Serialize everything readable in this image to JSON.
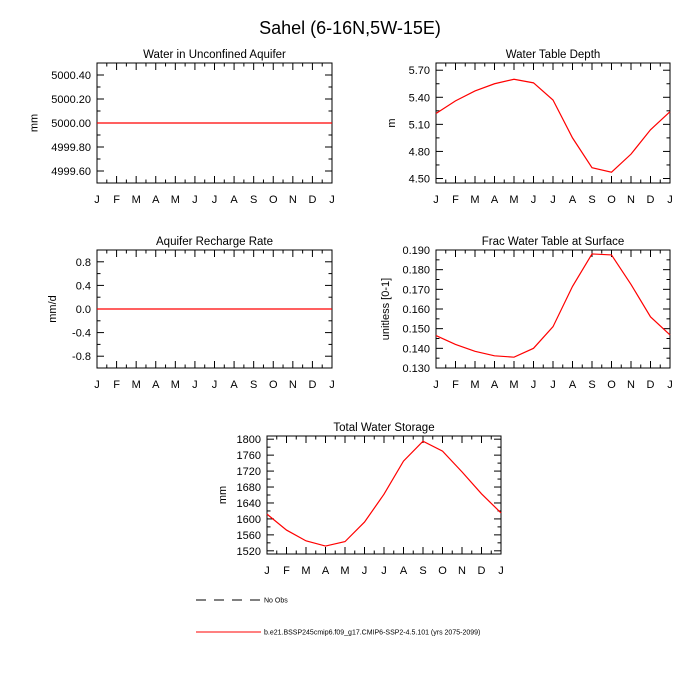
{
  "figure_title": "Sahel (6-16N,5W-15E)",
  "chart_data": [
    {
      "type": "line",
      "title": "Water in Unconfined Aquifer",
      "ylabel": "mm",
      "xlabel": "",
      "categories": [
        "J",
        "F",
        "M",
        "A",
        "M",
        "J",
        "J",
        "A",
        "S",
        "O",
        "N",
        "D",
        "J"
      ],
      "ylim": [
        4999.5,
        5000.5
      ],
      "yticks": [
        "5000.40",
        "5000.20",
        "5000.00",
        "4999.80",
        "4999.60"
      ],
      "ytick_values": [
        5000.4,
        5000.2,
        5000.0,
        4999.8,
        4999.6
      ],
      "series": [
        {
          "name": "b.e21.BSSP245cmip6.f09_g17.CMIP6-SSP2-4.5.101 (yrs 2075-2099)",
          "color": "#ff0000",
          "values": [
            5000,
            5000,
            5000,
            5000,
            5000,
            5000,
            5000,
            5000,
            5000,
            5000,
            5000,
            5000,
            5000
          ]
        }
      ]
    },
    {
      "type": "line",
      "title": "Water Table Depth",
      "ylabel": "m",
      "xlabel": "",
      "categories": [
        "J",
        "F",
        "M",
        "A",
        "M",
        "J",
        "J",
        "A",
        "S",
        "O",
        "N",
        "D",
        "J"
      ],
      "ylim": [
        4.45,
        5.78
      ],
      "yticks": [
        "5.70",
        "5.40",
        "5.10",
        "4.80",
        "4.50"
      ],
      "ytick_values": [
        5.7,
        5.4,
        5.1,
        4.8,
        4.5
      ],
      "series": [
        {
          "name": "b.e21.BSSP245cmip6.f09_g17.CMIP6-SSP2-4.5.101 (yrs 2075-2099)",
          "color": "#ff0000",
          "values": [
            5.22,
            5.36,
            5.47,
            5.55,
            5.6,
            5.56,
            5.37,
            4.95,
            4.62,
            4.57,
            4.77,
            5.04,
            5.24
          ]
        }
      ]
    },
    {
      "type": "line",
      "title": "Aquifer Recharge Rate",
      "ylabel": "mm/d",
      "xlabel": "",
      "categories": [
        "J",
        "F",
        "M",
        "A",
        "M",
        "J",
        "J",
        "A",
        "S",
        "O",
        "N",
        "D",
        "J"
      ],
      "ylim": [
        -1.0,
        1.0
      ],
      "yticks": [
        "0.8",
        "0.4",
        "0.0",
        "-0.4",
        "-0.8"
      ],
      "ytick_values": [
        0.8,
        0.4,
        0.0,
        -0.4,
        -0.8
      ],
      "series": [
        {
          "name": "b.e21.BSSP245cmip6.f09_g17.CMIP6-SSP2-4.5.101 (yrs 2075-2099)",
          "color": "#ff0000",
          "values": [
            0,
            0,
            0,
            0,
            0,
            0,
            0,
            0,
            0,
            0,
            0,
            0,
            0
          ]
        }
      ]
    },
    {
      "type": "line",
      "title": "Frac Water Table at Surface",
      "ylabel": "unitless [0-1]",
      "xlabel": "",
      "categories": [
        "J",
        "F",
        "M",
        "A",
        "M",
        "J",
        "J",
        "A",
        "S",
        "O",
        "N",
        "D",
        "J"
      ],
      "ylim": [
        0.13,
        0.19
      ],
      "yticks": [
        "0.190",
        "0.180",
        "0.170",
        "0.160",
        "0.150",
        "0.140",
        "0.130"
      ],
      "ytick_values": [
        0.19,
        0.18,
        0.17,
        0.16,
        0.15,
        0.14,
        0.13
      ],
      "series": [
        {
          "name": "b.e21.BSSP245cmip6.f09_g17.CMIP6-SSP2-4.5.101 (yrs 2075-2099)",
          "color": "#ff0000",
          "values": [
            0.1465,
            0.142,
            0.1385,
            0.1362,
            0.1355,
            0.14,
            0.151,
            0.1715,
            0.188,
            0.1875,
            0.1725,
            0.156,
            0.1468
          ]
        }
      ]
    },
    {
      "type": "line",
      "title": "Total Water Storage",
      "ylabel": "mm",
      "xlabel": "",
      "categories": [
        "J",
        "F",
        "M",
        "A",
        "M",
        "J",
        "J",
        "A",
        "S",
        "O",
        "N",
        "D",
        "J"
      ],
      "ylim": [
        1512,
        1808
      ],
      "yticks": [
        "1800",
        "1760",
        "1720",
        "1680",
        "1640",
        "1600",
        "1560",
        "1520"
      ],
      "ytick_values": [
        1800,
        1760,
        1720,
        1680,
        1640,
        1600,
        1560,
        1520
      ],
      "series": [
        {
          "name": "b.e21.BSSP245cmip6.f09_g17.CMIP6-SSP2-4.5.101 (yrs 2075-2099)",
          "color": "#ff0000",
          "values": [
            1612,
            1572,
            1545,
            1532,
            1543,
            1592,
            1662,
            1745,
            1795,
            1770,
            1718,
            1663,
            1615
          ]
        }
      ]
    }
  ],
  "legend": {
    "obs_label": "No Obs",
    "model_label": "b.e21.BSSP245cmip6.f09_g17.CMIP6-SSP2-4.5.101 (yrs 2075-2099)"
  }
}
